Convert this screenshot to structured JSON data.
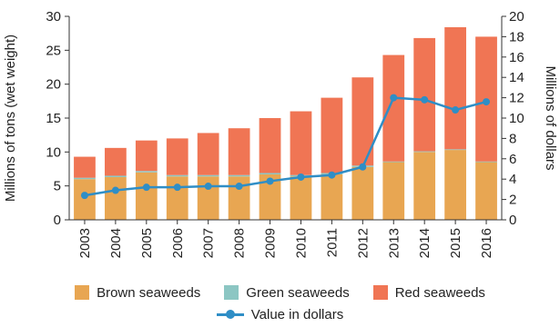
{
  "chart_data": {
    "type": "bar",
    "stacked": true,
    "categories": [
      "2003",
      "2004",
      "2005",
      "2006",
      "2007",
      "2008",
      "2009",
      "2010",
      "2011",
      "2012",
      "2013",
      "2014",
      "2015",
      "2016"
    ],
    "series": [
      {
        "name": "Brown seaweeds",
        "type": "bar",
        "axis": "left",
        "color": "#e8a652",
        "values": [
          6.0,
          6.3,
          7.0,
          6.4,
          6.4,
          6.4,
          6.7,
          6.4,
          6.7,
          7.8,
          8.5,
          10.0,
          10.3,
          8.5
        ]
      },
      {
        "name": "Green seaweeds",
        "type": "bar",
        "axis": "left",
        "color": "#8cc6c3",
        "values": [
          0.2,
          0.2,
          0.2,
          0.2,
          0.2,
          0.2,
          0.2,
          0.2,
          0.2,
          0.2,
          0.1,
          0.1,
          0.1,
          0.1
        ]
      },
      {
        "name": "Red seaweeds",
        "type": "bar",
        "axis": "left",
        "color": "#f07554",
        "values": [
          3.1,
          4.1,
          4.5,
          5.4,
          6.2,
          6.9,
          8.1,
          9.4,
          11.1,
          13.0,
          15.7,
          16.7,
          18.0,
          18.4
        ]
      },
      {
        "name": "Value in dollars",
        "type": "line",
        "axis": "right",
        "color": "#2f8ec6",
        "values": [
          2.4,
          2.9,
          3.2,
          3.2,
          3.3,
          3.3,
          3.8,
          4.2,
          4.4,
          5.2,
          12.0,
          11.8,
          10.8,
          11.6
        ]
      }
    ],
    "ylabel": "Millions of tons (wet weight)",
    "ylabel_right": "Millions of dollars",
    "ylim": [
      0,
      30
    ],
    "yticks": [
      0,
      5,
      10,
      15,
      20,
      25,
      30
    ],
    "ylim_right": [
      0,
      20
    ],
    "yticks_right": [
      0,
      2,
      4,
      6,
      8,
      10,
      12,
      14,
      16,
      18,
      20
    ],
    "grid": false,
    "legend_position": "bottom"
  }
}
